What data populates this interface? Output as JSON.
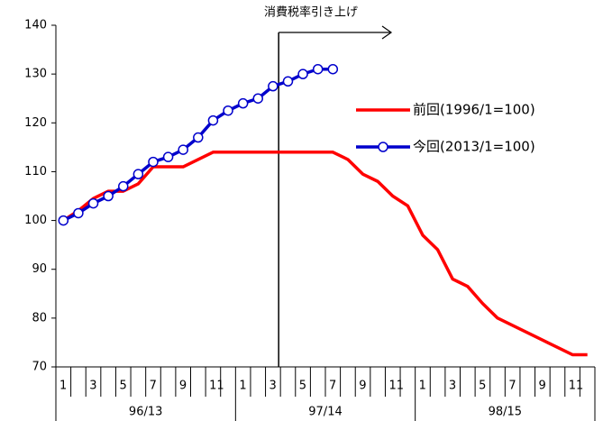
{
  "chart_data": {
    "type": "line",
    "annotation": "消費税率引き上げ",
    "categories": [
      "1",
      null,
      "3",
      null,
      "5",
      null,
      "7",
      null,
      "9",
      null,
      "11",
      null,
      "1",
      null,
      "3",
      null,
      "5",
      null,
      "7",
      null,
      "9",
      null,
      "11",
      null,
      "1",
      null,
      "3",
      null,
      "5",
      null,
      "7",
      null,
      "9",
      null,
      "11",
      null
    ],
    "groups": [
      "96/13",
      "97/14",
      "98/15"
    ],
    "series": [
      {
        "name": "前回(1996/1=100)",
        "color": "#ff0000",
        "values": [
          100,
          102,
          104.5,
          106,
          106,
          107.5,
          111,
          111,
          111,
          112.5,
          114,
          114,
          114,
          114,
          114,
          114,
          114,
          114,
          114,
          112.5,
          109.5,
          108,
          105,
          103,
          97,
          94,
          88,
          86.5,
          83,
          80,
          78.5,
          77,
          75.5,
          74,
          72.5,
          72.5
        ]
      },
      {
        "name": "今回(2013/1=100)",
        "color": "#0000cc",
        "marker": "circle",
        "values": [
          100,
          101.5,
          103.5,
          105,
          107,
          109.5,
          112,
          113,
          114.5,
          117,
          120.5,
          122.5,
          124,
          125,
          127.5,
          128.5,
          130,
          131,
          131,
          null,
          null,
          null,
          null,
          null,
          null,
          null,
          null,
          null,
          null,
          null,
          null,
          null,
          null,
          null,
          null,
          null
        ]
      }
    ],
    "ylim": [
      70,
      140
    ],
    "yticks": [
      70,
      80,
      90,
      100,
      110,
      120,
      130,
      140
    ],
    "grid": false,
    "legend": "right"
  }
}
